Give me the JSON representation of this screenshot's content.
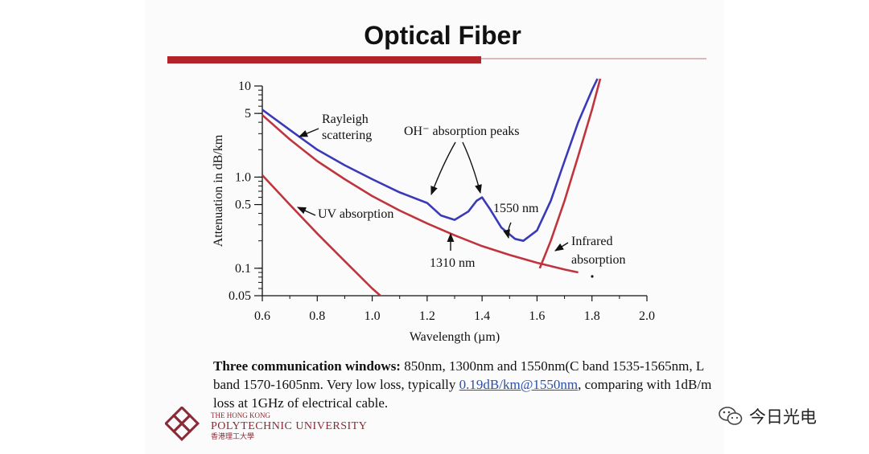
{
  "slide": {
    "title": "Optical Fiber",
    "caption_bold": "Three communication windows:",
    "caption_text1": " 850nm, 1300nm and 1550nm(C band 1535-1565nm, L band 1570-1605nm. Very low loss, typically ",
    "caption_link": "0.19dB/km@1550nm",
    "caption_text2": ", comparing with 1dB/m loss at 1GHz of electrical cable.",
    "logo_line1": "THE HONG KONG",
    "logo_line2": "POLYTECHNIC UNIVERSITY",
    "logo_line3": "香港理工大學",
    "watermark": "今日光电"
  },
  "chart_data": {
    "type": "line",
    "xlabel": "Wavelength (µm)",
    "ylabel": "Attenuation in dB/km",
    "xlim": [
      0.6,
      2.0
    ],
    "ylim": [
      0.05,
      10
    ],
    "y_scale": "log",
    "x_ticks": [
      "0.6",
      "0.8",
      "1.0",
      "1.2",
      "1.4",
      "1.6",
      "1.8",
      "2.0"
    ],
    "y_ticks": [
      {
        "value": 10,
        "label": "10"
      },
      {
        "value": 5,
        "label": "5"
      },
      {
        "value": 1.0,
        "label": "1.0"
      },
      {
        "value": 0.5,
        "label": "0.5"
      },
      {
        "value": 0.1,
        "label": "0.1"
      },
      {
        "value": 0.05,
        "label": "0.05"
      }
    ],
    "series": [
      {
        "key": "total",
        "color": "#3a3ab8",
        "x": [
          0.6,
          0.7,
          0.8,
          0.9,
          1.0,
          1.1,
          1.2,
          1.25,
          1.3,
          1.35,
          1.38,
          1.4,
          1.43,
          1.47,
          1.52,
          1.55,
          1.6,
          1.65,
          1.7,
          1.75,
          1.8,
          1.82
        ],
        "y": [
          5.5,
          3.3,
          2.0,
          1.35,
          0.95,
          0.68,
          0.52,
          0.38,
          0.34,
          0.42,
          0.55,
          0.6,
          0.44,
          0.28,
          0.21,
          0.2,
          0.26,
          0.55,
          1.5,
          4.0,
          9.0,
          12.0
        ]
      },
      {
        "key": "rayleigh",
        "color": "#c0343e",
        "x": [
          0.6,
          0.7,
          0.8,
          0.9,
          1.0,
          1.1,
          1.2,
          1.3,
          1.4,
          1.5,
          1.6,
          1.7,
          1.75
        ],
        "y": [
          4.8,
          2.6,
          1.5,
          0.95,
          0.62,
          0.43,
          0.31,
          0.23,
          0.175,
          0.14,
          0.115,
          0.097,
          0.09
        ]
      },
      {
        "key": "uv",
        "color": "#c0343e",
        "x": [
          0.6,
          0.7,
          0.8,
          0.9,
          1.0,
          1.04
        ],
        "y": [
          1.05,
          0.5,
          0.24,
          0.12,
          0.06,
          0.047
        ]
      },
      {
        "key": "infrared",
        "color": "#c0343e",
        "x": [
          1.61,
          1.65,
          1.7,
          1.75,
          1.8,
          1.83
        ],
        "y": [
          0.1,
          0.2,
          0.55,
          1.7,
          5.5,
          12.0
        ]
      }
    ],
    "annotations": [
      {
        "key": "rayleigh",
        "text": "Rayleigh scattering",
        "lines": [
          "Rayleigh",
          "scattering"
        ]
      },
      {
        "key": "oh",
        "text": "OH⁻ absorption peaks",
        "lines": [
          "OH⁻ absorption peaks"
        ]
      },
      {
        "key": "uv",
        "text": "UV absorption",
        "lines": [
          "UV absorption"
        ]
      },
      {
        "key": "n1550",
        "text": "1550 nm",
        "lines": [
          "1550 nm"
        ]
      },
      {
        "key": "n1310",
        "text": "1310 nm",
        "lines": [
          "1310 nm"
        ]
      },
      {
        "key": "ir",
        "text": "Infrared absorption",
        "lines": [
          "Infrared",
          "absorption"
        ]
      }
    ],
    "grid": false,
    "legend": "none"
  },
  "colors": {
    "accent_bar": "#b2232a",
    "fiber_loss": "#3a3ab8",
    "component_curves": "#c0343e"
  }
}
